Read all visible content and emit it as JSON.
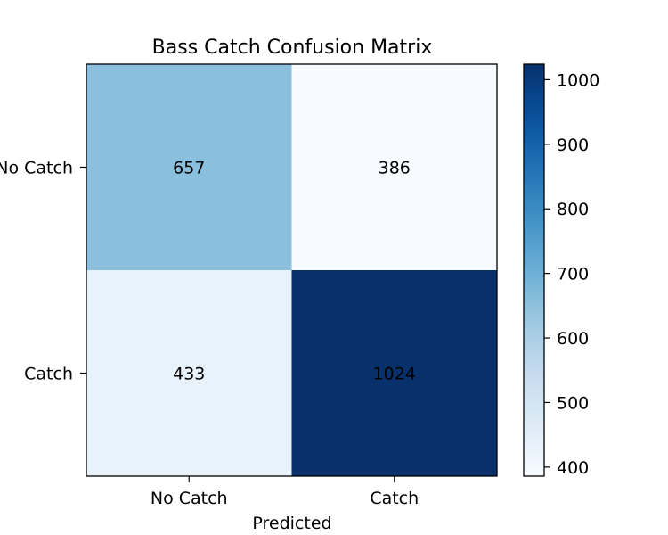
{
  "chart_data": {
    "type": "heatmap",
    "title": "Bass Catch Confusion Matrix",
    "xlabel": "Predicted",
    "ylabel": "",
    "x_categories": [
      "No Catch",
      "Catch"
    ],
    "y_categories": [
      "No Catch",
      "Catch"
    ],
    "values": [
      [
        657,
        386
      ],
      [
        433,
        1024
      ]
    ],
    "value_labels": [
      [
        "657",
        "386"
      ],
      [
        "433",
        "1024"
      ]
    ],
    "colormap": "Blues",
    "color_range": [
      386,
      1024
    ],
    "colorbar_ticks": [
      400,
      500,
      600,
      700,
      800,
      900,
      1000
    ],
    "colorbar_tick_labels": [
      "400",
      "500",
      "600",
      "700",
      "800",
      "900",
      "1000"
    ],
    "colormap_stops": [
      "#f7fbff",
      "#deebf7",
      "#c6dbef",
      "#9ecae1",
      "#6baed6",
      "#4292c6",
      "#2171b5",
      "#08519c",
      "#08306b"
    ]
  }
}
